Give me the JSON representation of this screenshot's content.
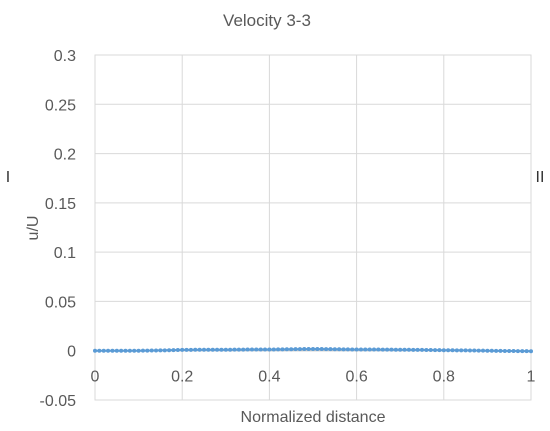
{
  "chart_data": {
    "type": "scatter",
    "title": "Velocity 3-3",
    "xlabel": "Normalized distance",
    "ylabel": "u/U",
    "xlim": [
      0,
      1
    ],
    "ylim": [
      -0.05,
      0.3
    ],
    "x_ticks": [
      "0",
      "0.2",
      "0.4",
      "0.6",
      "0.8",
      "1"
    ],
    "y_ticks": [
      "0.3",
      "0.25",
      "0.2",
      "0.15",
      "0.1",
      "0.05",
      "0",
      "-0.05"
    ],
    "grid": true,
    "series": [
      {
        "color": "#5b9bd5",
        "x": [
          0,
          0.05,
          0.1,
          0.15,
          0.2,
          0.25,
          0.3,
          0.35,
          0.4,
          0.45,
          0.5,
          0.55,
          0.6,
          0.65,
          0.7,
          0.75,
          0.8,
          0.85,
          0.9,
          0.95,
          1
        ],
        "y": [
          0,
          0,
          0,
          0.0003,
          0.0008,
          0.001,
          0.001,
          0.0012,
          0.0012,
          0.0015,
          0.0018,
          0.0015,
          0.0012,
          0.0012,
          0.001,
          0.0008,
          0.0005,
          0.0003,
          0,
          -0.0003,
          -0.0005
        ]
      }
    ],
    "side_labels": {
      "left": "I",
      "right": "II"
    }
  }
}
